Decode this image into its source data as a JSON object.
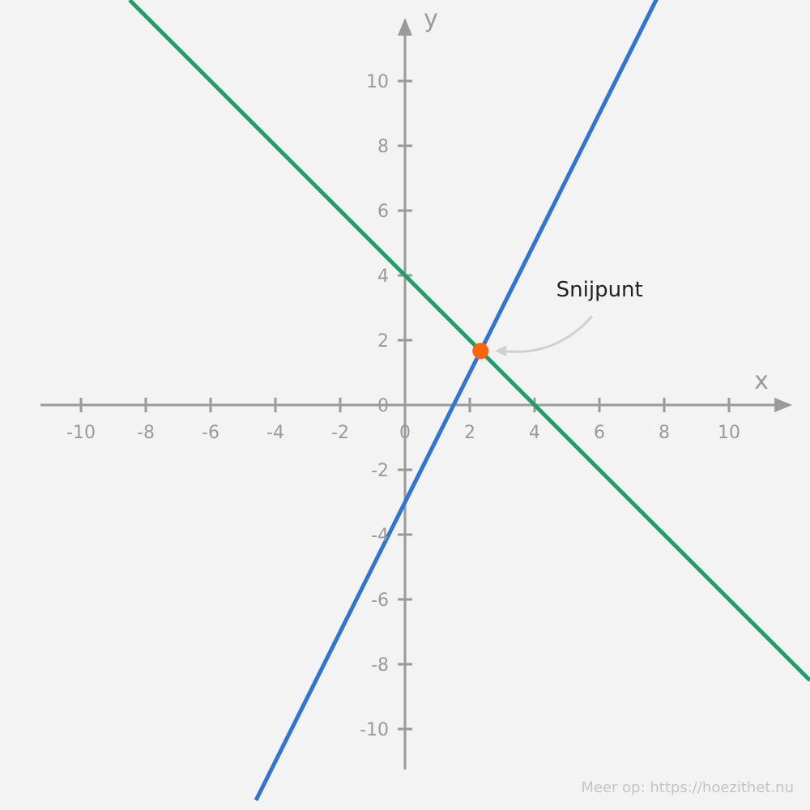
{
  "chart_data": {
    "type": "line",
    "title": "",
    "xlabel": "x",
    "ylabel": "y",
    "xlim": [
      -11.25,
      11.25
    ],
    "ylim": [
      -11.25,
      11.25
    ],
    "x_ticks": [
      -10,
      -8,
      -6,
      -4,
      -2,
      0,
      2,
      4,
      6,
      8,
      10
    ],
    "y_ticks": [
      10,
      8,
      6,
      4,
      2,
      0,
      -2,
      -4,
      -6,
      -8,
      -10
    ],
    "x_tick_labels": [
      "-10",
      "-8",
      "-6",
      "-4",
      "-2",
      "0",
      "2",
      "4",
      "6",
      "8",
      "10"
    ],
    "y_tick_labels": [
      "10",
      "8",
      "6",
      "4",
      "2",
      "0",
      "-2",
      "-4",
      "-6",
      "-8",
      "-10"
    ],
    "grid": false,
    "series": [
      {
        "id": "green-line",
        "color": "#1f9e6a",
        "slope": -1,
        "intercept": 4,
        "x": [
          -8.5,
          12.5
        ],
        "y": [
          12.5,
          -8.5
        ]
      },
      {
        "id": "blue-line",
        "color": "#3273d6",
        "slope": 2,
        "intercept": -3,
        "x": [
          -4.6,
          7.8
        ],
        "y": [
          -12.2,
          12.6
        ]
      }
    ],
    "intersection": {
      "x": 2.33,
      "y": 1.67,
      "color": "#ff6508"
    },
    "annotations": [
      {
        "text": "Snijpunt",
        "points_to": [
          2.33,
          1.67
        ]
      }
    ]
  },
  "footer": {
    "text": "Meer op: https://hoezithet.nu"
  }
}
